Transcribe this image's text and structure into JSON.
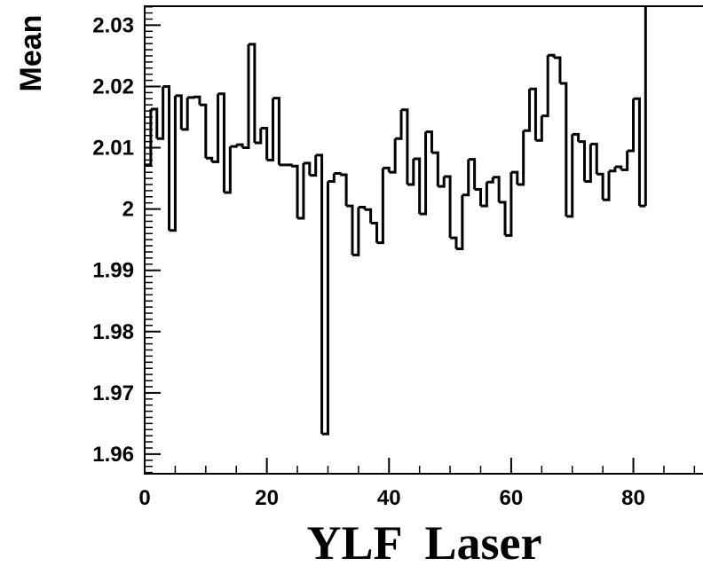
{
  "chart_data": {
    "type": "line",
    "style": "step-histogram",
    "title": "",
    "xlabel": "YLF  Laser",
    "ylabel": "Mean",
    "xlim": [
      0,
      93
    ],
    "ylim": [
      1.9568,
      2.0331
    ],
    "x_ticks": [
      "0",
      "20",
      "40",
      "60",
      "80"
    ],
    "y_ticks": [
      "1.96",
      "1.97",
      "1.98",
      "1.99",
      "2",
      "2.01",
      "2.02",
      "2.03"
    ],
    "bin_edges_start": 0,
    "bin_width": 1,
    "values": [
      2.0072,
      2.0163,
      2.0115,
      2.02,
      1.9965,
      2.0185,
      2.013,
      2.0182,
      2.0183,
      2.017,
      2.0083,
      2.0077,
      2.0188,
      2.0027,
      2.0102,
      2.0105,
      2.01,
      2.0269,
      2.0108,
      2.0132,
      2.008,
      2.0181,
      2.0072,
      2.0072,
      2.007,
      1.9985,
      2.0075,
      2.0055,
      2.0088,
      1.9633,
      2.0045,
      2.0058,
      2.0056,
      2.0005,
      1.9925,
      2.0003,
      1.9999,
      1.9977,
      1.9945,
      2.0067,
      2.006,
      2.0115,
      2.0162,
      2.004,
      2.0082,
      1.9992,
      2.0126,
      2.0092,
      2.0037,
      2.0053,
      1.9953,
      1.9935,
      2.0023,
      2.0081,
      2.0032,
      2.0005,
      2.0044,
      2.0052,
      2.0011,
      1.9957,
      2.006,
      2.004,
      2.0128,
      2.0196,
      2.0112,
      2.0152,
      2.0251,
      2.0247,
      2.0205,
      1.9988,
      2.0122,
      2.011,
      2.0045,
      2.0106,
      2.0057,
      2.0015,
      2.0062,
      2.0069,
      2.0064,
      2.0095,
      2.018,
      2.0005
    ],
    "grid": false,
    "legend": "none"
  }
}
